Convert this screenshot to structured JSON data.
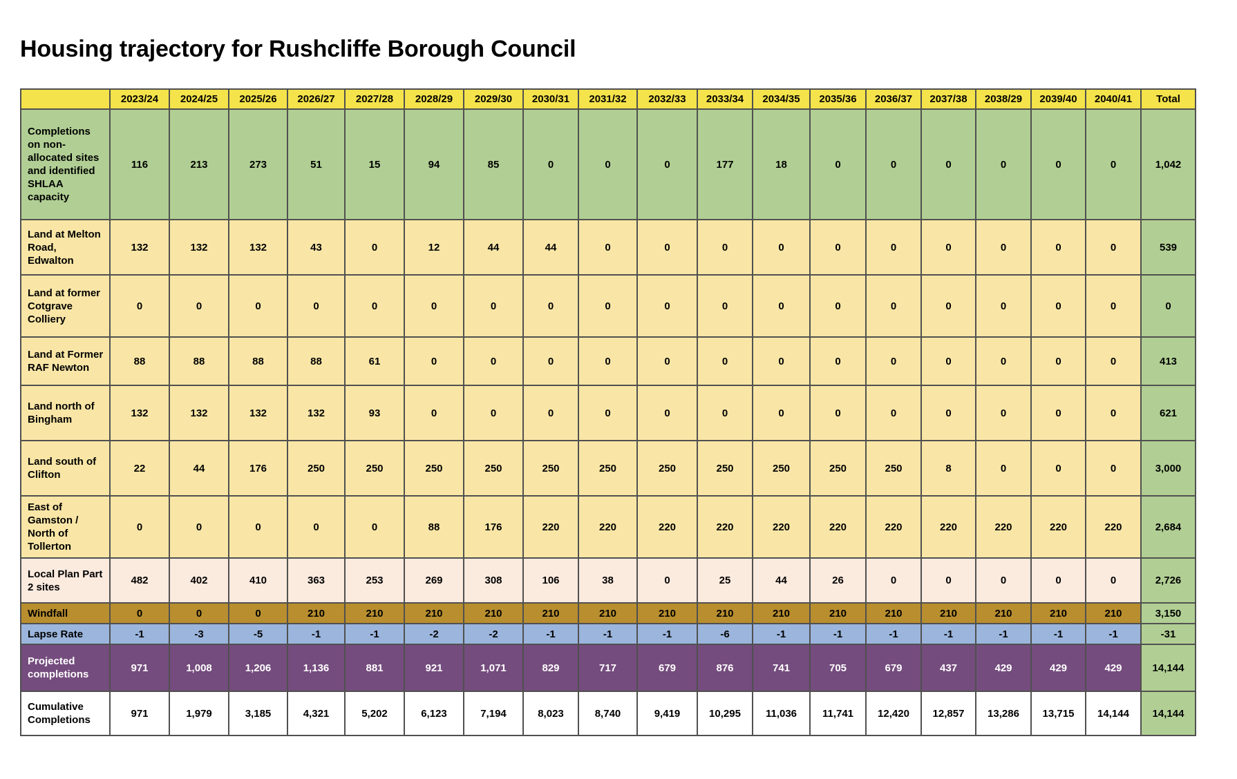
{
  "title": "Housing trajectory for Rushcliffe Borough Council",
  "columns": [
    "2023/24",
    "2024/25",
    "2025/26",
    "2026/27",
    "2027/28",
    "2028/29",
    "2029/30",
    "2030/31",
    "2031/32",
    "2032/33",
    "2033/34",
    "2034/35",
    "2035/36",
    "2036/37",
    "2037/38",
    "2038/29",
    "2039/40",
    "2040/41",
    "Total"
  ],
  "rows": [
    {
      "label": "Completions on non-allocated sites and identified SHLAA capacity",
      "style": "green",
      "height": 140,
      "values": [
        "116",
        "213",
        "273",
        "51",
        "15",
        "94",
        "85",
        "0",
        "0",
        "0",
        "177",
        "18",
        "0",
        "0",
        "0",
        "0",
        "0",
        "0",
        "1,042"
      ]
    },
    {
      "label": "Land at Melton Road, Edwalton",
      "style": "yellow",
      "height": 70,
      "values": [
        "132",
        "132",
        "132",
        "43",
        "0",
        "12",
        "44",
        "44",
        "0",
        "0",
        "0",
        "0",
        "0",
        "0",
        "0",
        "0",
        "0",
        "0",
        "539"
      ]
    },
    {
      "label": "Land at former Cotgrave Colliery",
      "style": "yellow",
      "height": 78,
      "values": [
        "0",
        "0",
        "0",
        "0",
        "0",
        "0",
        "0",
        "0",
        "0",
        "0",
        "0",
        "0",
        "0",
        "0",
        "0",
        "0",
        "0",
        "0",
        "0"
      ]
    },
    {
      "label": "Land at Former RAF Newton",
      "style": "yellow",
      "height": 61,
      "values": [
        "88",
        "88",
        "88",
        "88",
        "61",
        "0",
        "0",
        "0",
        "0",
        "0",
        "0",
        "0",
        "0",
        "0",
        "0",
        "0",
        "0",
        "0",
        "413"
      ]
    },
    {
      "label": "Land north of Bingham",
      "style": "yellow",
      "height": 70,
      "values": [
        "132",
        "132",
        "132",
        "132",
        "93",
        "0",
        "0",
        "0",
        "0",
        "0",
        "0",
        "0",
        "0",
        "0",
        "0",
        "0",
        "0",
        "0",
        "621"
      ]
    },
    {
      "label": "Land south of Clifton",
      "style": "yellow",
      "height": 70,
      "values": [
        "22",
        "44",
        "176",
        "250",
        "250",
        "250",
        "250",
        "250",
        "250",
        "250",
        "250",
        "250",
        "250",
        "250",
        "8",
        "0",
        "0",
        "0",
        "3,000"
      ]
    },
    {
      "label": "East of Gamston / North of Tollerton",
      "style": "yellow",
      "height": 78,
      "values": [
        "0",
        "0",
        "0",
        "0",
        "0",
        "88",
        "176",
        "220",
        "220",
        "220",
        "220",
        "220",
        "220",
        "220",
        "220",
        "220",
        "220",
        "220",
        "2,684"
      ]
    },
    {
      "label": "Local Plan Part 2 sites",
      "style": "peach",
      "height": 57,
      "values": [
        "482",
        "402",
        "410",
        "363",
        "253",
        "269",
        "308",
        "106",
        "38",
        "0",
        "25",
        "44",
        "26",
        "0",
        "0",
        "0",
        "0",
        "0",
        "2,726"
      ]
    },
    {
      "label": "Windfall",
      "style": "windfall",
      "height": 26,
      "values": [
        "0",
        "0",
        "0",
        "210",
        "210",
        "210",
        "210",
        "210",
        "210",
        "210",
        "210",
        "210",
        "210",
        "210",
        "210",
        "210",
        "210",
        "210",
        "3,150"
      ]
    },
    {
      "label": "Lapse Rate",
      "style": "lapse",
      "height": 26,
      "values": [
        "-1",
        "-3",
        "-5",
        "-1",
        "-1",
        "-2",
        "-2",
        "-1",
        "-1",
        "-1",
        "-6",
        "-1",
        "-1",
        "-1",
        "-1",
        "-1",
        "-1",
        "-1",
        "-31"
      ]
    },
    {
      "label": "Projected completions",
      "style": "projected",
      "height": 59,
      "values": [
        "971",
        "1,008",
        "1,206",
        "1,136",
        "881",
        "921",
        "1,071",
        "829",
        "717",
        "679",
        "876",
        "741",
        "705",
        "679",
        "437",
        "429",
        "429",
        "429",
        "14,144"
      ]
    },
    {
      "label": "Cumulative Completions",
      "style": "cumulative",
      "height": 64,
      "values": [
        "971",
        "1,979",
        "3,185",
        "4,321",
        "5,202",
        "6,123",
        "7,194",
        "8,023",
        "8,740",
        "9,419",
        "10,295",
        "11,036",
        "11,741",
        "12,420",
        "12,857",
        "13,286",
        "13,715",
        "14,144",
        "14,144"
      ]
    }
  ]
}
